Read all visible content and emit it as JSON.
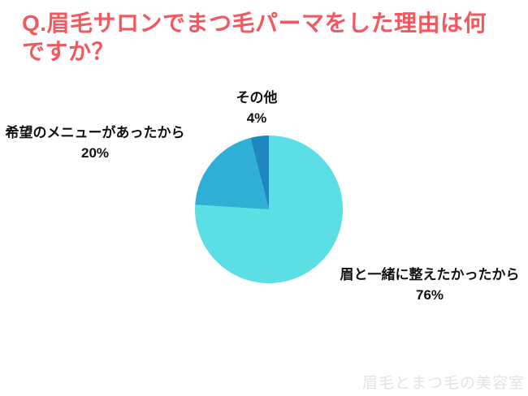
{
  "title": "Q.眉毛サロンでまつ毛パーマをした理由は何ですか？",
  "watermark": "眉毛とまつ毛の美容室",
  "colors": {
    "title": "#F2585F",
    "label_text": "#111111",
    "watermark": "#E2E2E2",
    "background": "#FFFFFF"
  },
  "chart_data": {
    "type": "pie",
    "title": "Q.眉毛サロンでまつ毛パーマをした理由は何ですか？",
    "unit": "%",
    "start_angle_deg": 0,
    "direction": "clockwise",
    "legend_position": "labels-outside",
    "slices": [
      {
        "label": "眉と一緒に整えたかったから",
        "value": 76,
        "display": "76%",
        "color": "#5BDEE4"
      },
      {
        "label": "希望のメニューがあったから",
        "value": 20,
        "display": "20%",
        "color": "#2FAFD5"
      },
      {
        "label": "その他",
        "value": 4,
        "display": "4%",
        "color": "#1D87C0"
      }
    ]
  }
}
